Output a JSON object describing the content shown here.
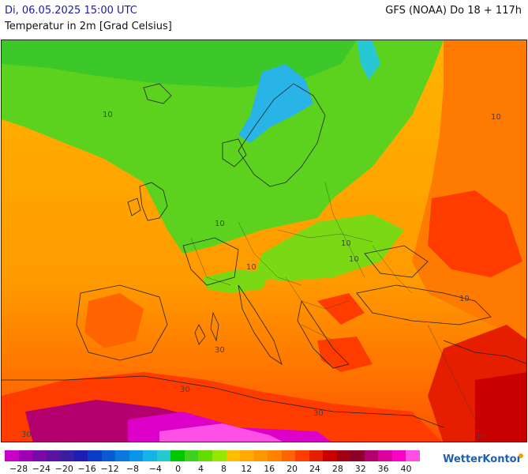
{
  "header": {
    "valid_time": "Di, 06.05.2025 15:00 UTC",
    "parameter": "Temperatur in 2m [Grad Celsius]",
    "model_run": "GFS (NOAA) Do 18 + 117h"
  },
  "map": {
    "contour_labels": [
      {
        "text": "10",
        "id": "c1"
      },
      {
        "text": "10",
        "id": "c2"
      },
      {
        "text": "10",
        "id": "c3"
      },
      {
        "text": "10",
        "id": "c4"
      },
      {
        "text": "10",
        "id": "c5"
      },
      {
        "text": "10",
        "id": "c6"
      },
      {
        "text": "10",
        "id": "c7"
      },
      {
        "text": "30",
        "id": "c8"
      },
      {
        "text": "30",
        "id": "c9"
      },
      {
        "text": "30",
        "id": "c10"
      },
      {
        "text": "30",
        "id": "c11"
      },
      {
        "text": "30",
        "id": "c12"
      }
    ]
  },
  "legend": {
    "colors": [
      "#c800c8",
      "#a000b4",
      "#7a0aa6",
      "#5a14a0",
      "#3c1ea0",
      "#1e1eb4",
      "#0a3cc8",
      "#0a5ad2",
      "#0a78dc",
      "#0a96e6",
      "#14b4e6",
      "#28c8d2",
      "#00c800",
      "#3cd21e",
      "#64dc00",
      "#96e600",
      "#ffbe00",
      "#ffaa00",
      "#ff9600",
      "#ff8200",
      "#ff6400",
      "#ff3c00",
      "#e61e00",
      "#c80000",
      "#a00014",
      "#8c0028",
      "#b4006e",
      "#dc00a0",
      "#ff00c8",
      "#ff50e6"
    ],
    "ticks": [
      "−28",
      "−24",
      "−20",
      "−16",
      "−12",
      "−8",
      "−4",
      "0",
      "4",
      "8",
      "12",
      "16",
      "20",
      "24",
      "28",
      "32",
      "36",
      "40"
    ]
  },
  "brand": "WetterKontor"
}
